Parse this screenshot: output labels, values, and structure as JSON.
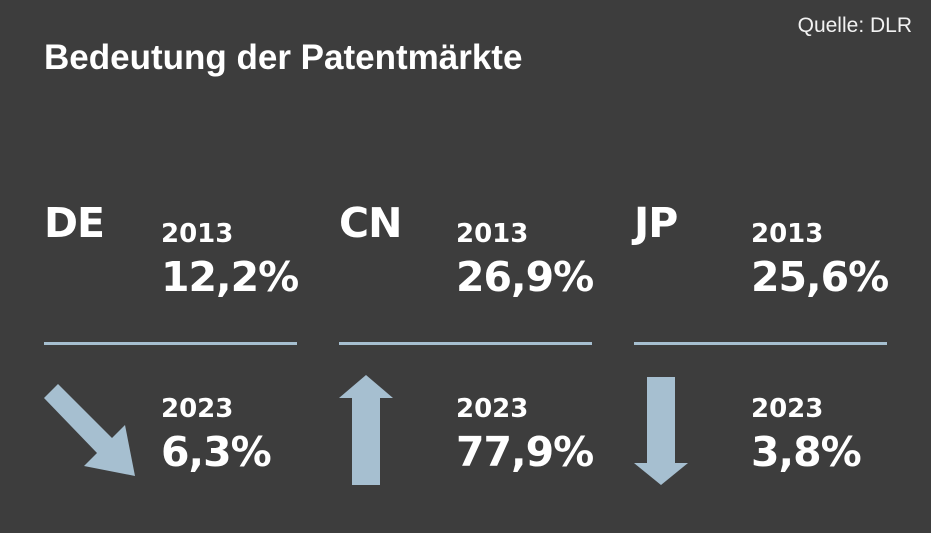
{
  "source": "Quelle: DLR",
  "title": "Bedeutung der Patentmärkte",
  "arrow_color": "#a6bfd0",
  "background_color": "#3d3d3d",
  "chart_data": {
    "type": "table",
    "title": "Bedeutung der Patentmärkte",
    "columns": [
      "2013",
      "2023"
    ],
    "rows": [
      {
        "country": "DE",
        "values": [
          12.2,
          6.3
        ],
        "labels": [
          "12,2%",
          "6,3%"
        ],
        "trend": "down-diagonal"
      },
      {
        "country": "CN",
        "values": [
          26.9,
          77.9
        ],
        "labels": [
          "26,9%",
          "77,9%"
        ],
        "trend": "up"
      },
      {
        "country": "JP",
        "values": [
          25.6,
          3.8
        ],
        "labels": [
          "25,6%",
          "3,8%"
        ],
        "trend": "down"
      }
    ]
  },
  "panels": [
    {
      "code": "DE",
      "year1": "2013",
      "value1": "12,2%",
      "year2": "2023",
      "value2": "6,3%",
      "arrow": "arrow-down-right-icon"
    },
    {
      "code": "CN",
      "year1": "2013",
      "value1": "26,9%",
      "year2": "2023",
      "value2": "77,9%",
      "arrow": "arrow-up-icon"
    },
    {
      "code": "JP",
      "year1": "2013",
      "value1": "25,6%",
      "year2": "2023",
      "value2": "3,8%",
      "arrow": "arrow-down-icon"
    }
  ]
}
